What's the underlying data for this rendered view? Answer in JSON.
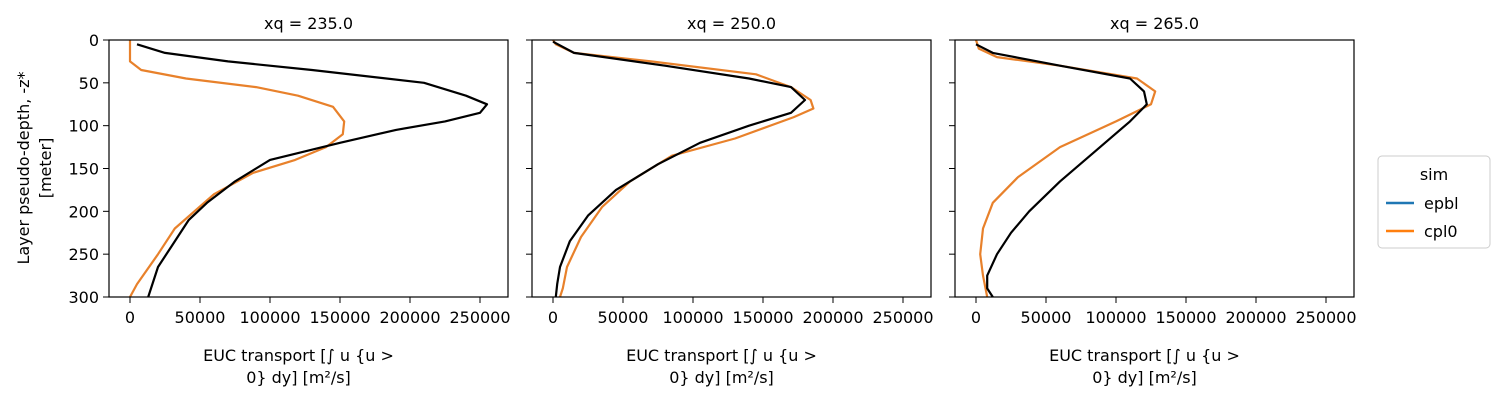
{
  "chart_data": {
    "type": "line",
    "ylabel_lines": [
      "Layer pseudo-depth, -z*",
      "[meter]"
    ],
    "xlabel_lines": [
      "EUC transport [∫ u {u >",
      "0} dy] [m²/s]"
    ],
    "xlim": [
      -15000,
      270000
    ],
    "ylim": [
      300,
      0
    ],
    "xticks": [
      0,
      50000,
      100000,
      150000,
      200000,
      250000
    ],
    "xtick_labels": [
      "0",
      "50000",
      "100000",
      "150000",
      "200000",
      "250000"
    ],
    "yticks": [
      0,
      50,
      100,
      150,
      200,
      250,
      300
    ],
    "ytick_labels": [
      "0",
      "50",
      "100",
      "150",
      "200",
      "250",
      "300"
    ],
    "legend": {
      "title": "sim",
      "placement": "right",
      "entries": [
        {
          "label": "epbl",
          "color": "#1f77b4"
        },
        {
          "label": "cpl0",
          "color": "#ff7f0e"
        }
      ]
    },
    "colors": {
      "epbl": "#000000",
      "cpl0": "#e8812b"
    },
    "panels": [
      {
        "title": "xq = 235.0",
        "series": [
          {
            "name": "cpl0",
            "x": [
              0,
              0,
              0,
              8000,
              40000,
              90000,
              120000,
              145000,
              153000,
              152000,
              140000,
              118000,
              88000,
              60000,
              32000,
              20000,
              5000,
              0
            ],
            "y": [
              0,
              10,
              25,
              35,
              45,
              55,
              65,
              78,
              95,
              110,
              125,
              140,
              155,
              180,
              220,
              250,
              285,
              300
            ]
          },
          {
            "name": "epbl",
            "x": [
              5000,
              25000,
              70000,
              130000,
              210000,
              240000,
              255000,
              250000,
              225000,
              190000,
              150000,
              100000,
              75000,
              55000,
              42000,
              30000,
              20000,
              13000
            ],
            "y": [
              5,
              15,
              25,
              35,
              50,
              65,
              75,
              85,
              95,
              105,
              120,
              140,
              165,
              190,
              210,
              240,
              265,
              300
            ]
          }
        ]
      },
      {
        "title": "xq = 250.0",
        "series": [
          {
            "name": "cpl0",
            "x": [
              0,
              2000,
              15000,
              70000,
              145000,
              170000,
              184000,
              186000,
              172000,
              130000,
              85000,
              55000,
              35000,
              20000,
              10000,
              7000,
              5000
            ],
            "y": [
              0,
              5,
              15,
              25,
              40,
              55,
              70,
              80,
              90,
              115,
              135,
              165,
              195,
              230,
              265,
              290,
              300
            ]
          },
          {
            "name": "epbl",
            "x": [
              0,
              15000,
              80000,
              140000,
              170000,
              180000,
              170000,
              140000,
              105000,
              75000,
              45000,
              25000,
              12000,
              5000,
              3000,
              2000
            ],
            "y": [
              2,
              15,
              30,
              45,
              55,
              70,
              85,
              100,
              120,
              145,
              175,
              205,
              235,
              265,
              285,
              300
            ]
          }
        ]
      },
      {
        "title": "xq = 265.0",
        "series": [
          {
            "name": "cpl0",
            "x": [
              0,
              2000,
              15000,
              60000,
              115000,
              128000,
              125000,
              100000,
              60000,
              30000,
              12000,
              5000,
              3000,
              5000,
              8000
            ],
            "y": [
              0,
              10,
              20,
              30,
              45,
              60,
              75,
              95,
              125,
              160,
              190,
              220,
              250,
              275,
              300
            ]
          },
          {
            "name": "epbl",
            "x": [
              0,
              12000,
              60000,
              110000,
              120000,
              122000,
              110000,
              85000,
              60000,
              38000,
              25000,
              15000,
              8000,
              8000,
              12000
            ],
            "y": [
              5,
              15,
              30,
              45,
              60,
              75,
              95,
              130,
              165,
              200,
              225,
              250,
              275,
              290,
              300
            ]
          }
        ]
      }
    ]
  }
}
